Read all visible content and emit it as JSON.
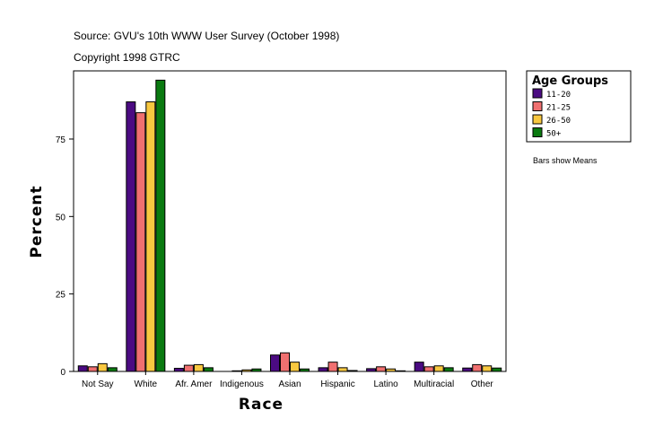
{
  "source": "Source: GVU's 10th WWW User Survey (October 1998)",
  "copyright": "Copyright 1998 GTRC",
  "note": "Bars show Means",
  "chart_data": {
    "type": "bar",
    "title": "",
    "xlabel": "Race",
    "ylabel": "Percent",
    "ylim": [
      0,
      97
    ],
    "yticks": [
      0,
      25,
      50,
      75
    ],
    "grid": false,
    "legend": {
      "title": "Age Groups",
      "placement": "top-right-outside"
    },
    "categories": [
      "Not Say",
      "White",
      "Afr. Amer",
      "Indigenous",
      "Asian",
      "Hispanic",
      "Latino",
      "Multiracial",
      "Other"
    ],
    "series": [
      {
        "name": "11-20",
        "color": "#4b0b82",
        "values": [
          1.8,
          87.0,
          1.0,
          0.0,
          5.3,
          1.2,
          0.9,
          3.0,
          1.1
        ]
      },
      {
        "name": "21-25",
        "color": "#f07070",
        "values": [
          1.5,
          83.5,
          2.0,
          0.2,
          6.0,
          3.0,
          1.5,
          1.5,
          2.2
        ]
      },
      {
        "name": "26-50",
        "color": "#f8c840",
        "values": [
          2.5,
          87.0,
          2.2,
          0.5,
          3.0,
          1.2,
          0.8,
          1.8,
          1.8
        ]
      },
      {
        "name": "50+",
        "color": "#0a7a10",
        "values": [
          1.2,
          94.0,
          1.2,
          0.8,
          0.8,
          0.3,
          0.2,
          1.2,
          1.1
        ]
      }
    ]
  }
}
